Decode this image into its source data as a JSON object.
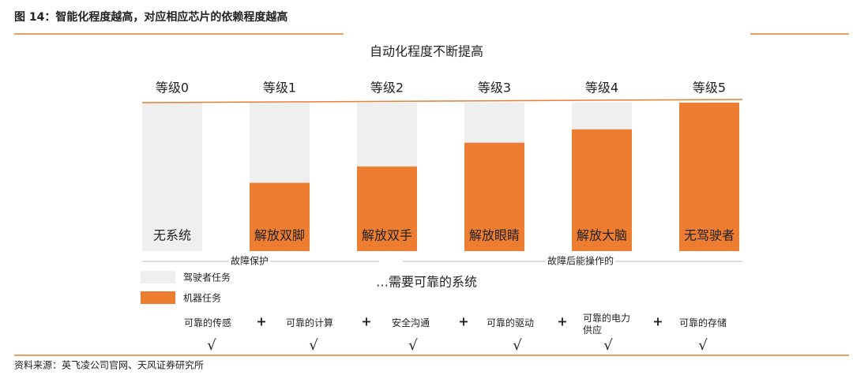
{
  "header": {
    "title": "图 14：智能化程度越高，对应相应芯片的依赖程度越高"
  },
  "diagram": {
    "title": "自动化程度不断提高",
    "levels": [
      {
        "label": "等级0",
        "name": "无系统",
        "machine_share": 0
      },
      {
        "label": "等级1",
        "name": "解放双脚",
        "machine_share": 46
      },
      {
        "label": "等级2",
        "name": "解放双手",
        "machine_share": 57
      },
      {
        "label": "等级3",
        "name": "解放眼睛",
        "machine_share": 73
      },
      {
        "label": "等级4",
        "name": "解放大脑",
        "machine_share": 82
      },
      {
        "label": "等级5",
        "name": "无驾驶者",
        "machine_share": 100
      }
    ],
    "phases": [
      "故障保护",
      "故障后能操作的"
    ],
    "legend": [
      {
        "name": "驾驶者任务",
        "color": "#efefef"
      },
      {
        "name": "机器任务",
        "color": "#ed7d31"
      }
    ],
    "subtitle": "…需要可靠的系统",
    "requirements": [
      "可靠的传感",
      "可靠的计算",
      "安全沟通",
      "可靠的驱动",
      "可靠的电力供应",
      "可靠的存储"
    ],
    "plus": "+",
    "check": "√"
  },
  "footer": {
    "source": "资料来源：英飞凌公司官网、天风证券研究所"
  }
}
